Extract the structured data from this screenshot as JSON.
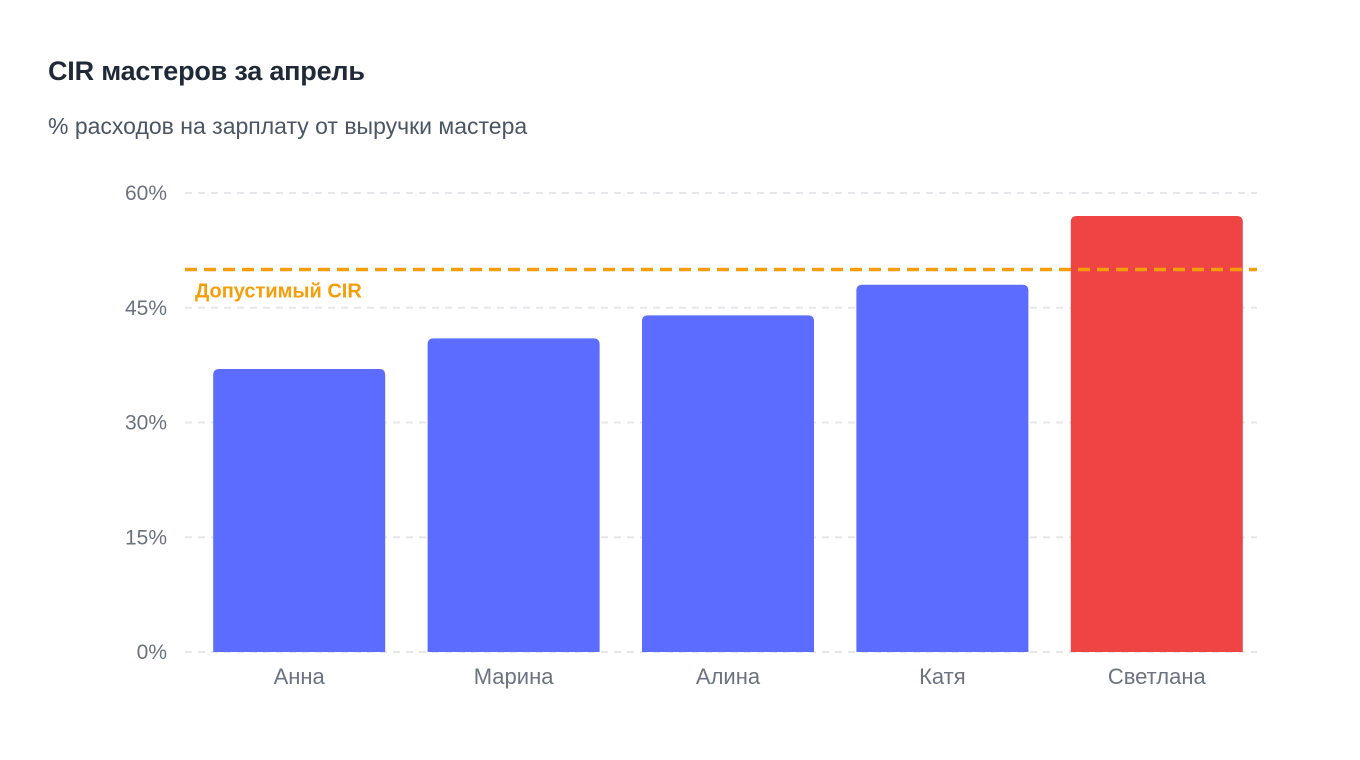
{
  "title": "CIR мастеров за апрель",
  "subtitle": "% расходов на зарплату от выручки мастера",
  "colors": {
    "bar": "#5b6cff",
    "bar_over_limit": "#ef4444",
    "reference_line": "#f59e0b",
    "grid": "#e5e7eb"
  },
  "chart_data": {
    "type": "bar",
    "categories": [
      "Анна",
      "Марина",
      "Алина",
      "Катя",
      "Светлана"
    ],
    "values": [
      37,
      41,
      44,
      48,
      57
    ],
    "unit": "%",
    "ylim": [
      0,
      60
    ],
    "yticks": [
      0,
      15,
      30,
      45,
      60
    ],
    "ytick_labels": [
      "0%",
      "15%",
      "30%",
      "45%",
      "60%"
    ],
    "grid": true,
    "reference_line": {
      "value": 50,
      "label": "Допустимый CIR"
    },
    "highlighted_category": "Светлана"
  }
}
